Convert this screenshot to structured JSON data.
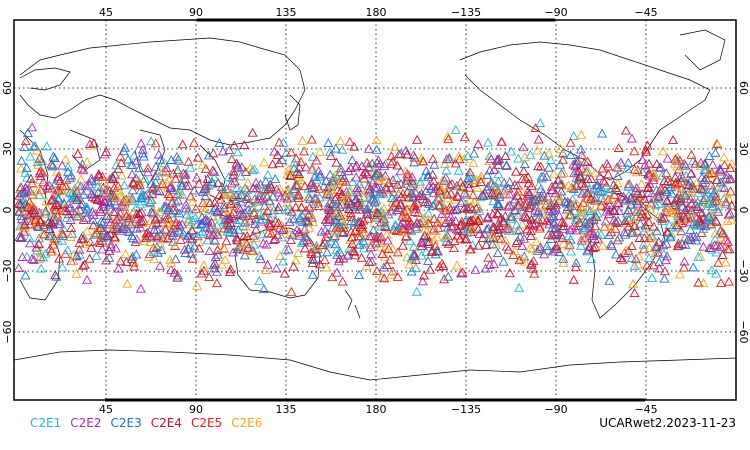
{
  "map": {
    "lon_ticks": [
      "45",
      "90",
      "135",
      "180",
      "−135",
      "−90",
      "−45"
    ],
    "lat_ticks_left": [
      "60",
      "30",
      "0",
      "−30",
      "−60"
    ],
    "lat_ticks_right": [
      "60",
      "30",
      "0",
      "−30",
      "−60"
    ],
    "grid": true,
    "marker_shape": "open-triangle",
    "lat_band_deg": [
      -45,
      45
    ],
    "lon_range_deg": [
      0,
      360
    ]
  },
  "legend": [
    {
      "label": "C2E1",
      "color": "#1fb8d8"
    },
    {
      "label": "C2E2",
      "color": "#a52bb6"
    },
    {
      "label": "C2E3",
      "color": "#1f6fd0"
    },
    {
      "label": "C2E4",
      "color": "#c8102e"
    },
    {
      "label": "C2E5",
      "color": "#e8201c"
    },
    {
      "label": "C2E6",
      "color": "#f5a81c"
    }
  ],
  "footer": {
    "label": "UCARwet2.2023-11-23"
  }
}
